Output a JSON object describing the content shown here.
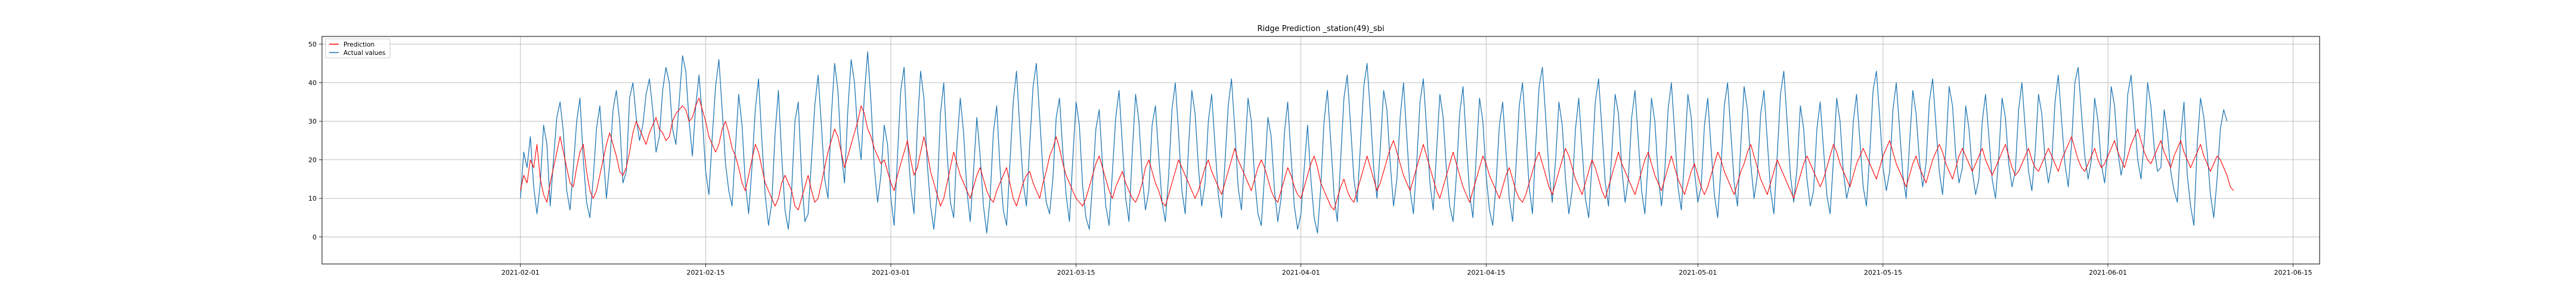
{
  "chart_data": {
    "type": "line",
    "title": "Ridge Prediction _station(49)_sbi",
    "xlabel": "",
    "ylabel": "",
    "x_range": [
      "2021-01-17",
      "2021-06-17"
    ],
    "ylim": [
      -7,
      52
    ],
    "x_ticks": [
      "2021-02-01",
      "2021-02-15",
      "2021-03-01",
      "2021-03-15",
      "2021-04-01",
      "2021-04-15",
      "2021-05-01",
      "2021-05-15",
      "2021-06-01",
      "2021-06-15"
    ],
    "y_ticks": [
      0,
      10,
      20,
      30,
      40,
      50
    ],
    "grid": true,
    "legend_position": "top-left",
    "sampling": "every 6 hours, 2021-02-01 to 2021-06-10",
    "series": [
      {
        "name": "Prediction",
        "color": "#ff0000",
        "values": [
          12,
          16,
          14,
          20,
          18,
          24,
          15,
          11,
          9,
          14,
          18,
          22,
          26,
          22,
          18,
          14,
          13,
          18,
          22,
          24,
          17,
          12,
          10,
          12,
          16,
          20,
          24,
          27,
          24,
          21,
          17,
          16,
          18,
          22,
          27,
          30,
          28,
          26,
          24,
          27,
          29,
          31,
          28,
          27,
          25,
          26,
          30,
          32,
          33,
          34,
          33,
          30,
          31,
          34,
          36,
          33,
          30,
          26,
          24,
          22,
          24,
          28,
          30,
          27,
          23,
          21,
          18,
          14,
          12,
          16,
          20,
          24,
          22,
          18,
          14,
          12,
          10,
          8,
          10,
          14,
          16,
          14,
          12,
          8,
          7,
          10,
          13,
          16,
          12,
          9,
          10,
          14,
          18,
          22,
          25,
          28,
          26,
          22,
          18,
          21,
          24,
          27,
          30,
          34,
          32,
          28,
          26,
          23,
          21,
          19,
          20,
          17,
          14,
          12,
          16,
          19,
          22,
          25,
          20,
          16,
          18,
          22,
          26,
          22,
          17,
          14,
          11,
          8,
          10,
          14,
          18,
          22,
          19,
          16,
          14,
          12,
          10,
          13,
          16,
          18,
          15,
          12,
          10,
          9,
          12,
          14,
          16,
          18,
          14,
          10,
          8,
          11,
          14,
          16,
          17,
          14,
          12,
          10,
          14,
          17,
          21,
          23,
          26,
          23,
          19,
          16,
          14,
          12,
          10,
          9,
          8,
          10,
          13,
          16,
          19,
          21,
          18,
          15,
          12,
          10,
          13,
          15,
          17,
          14,
          12,
          10,
          9,
          11,
          14,
          18,
          20,
          17,
          14,
          12,
          9,
          8,
          11,
          14,
          17,
          20,
          18,
          16,
          14,
          12,
          10,
          12,
          15,
          18,
          20,
          17,
          15,
          13,
          11,
          14,
          17,
          20,
          23,
          20,
          18,
          16,
          14,
          12,
          15,
          18,
          20,
          18,
          15,
          12,
          10,
          9,
          12,
          15,
          18,
          16,
          13,
          11,
          10,
          13,
          16,
          19,
          21,
          18,
          14,
          12,
          10,
          8,
          7,
          10,
          13,
          15,
          12,
          10,
          9,
          12,
          15,
          18,
          21,
          18,
          15,
          12,
          14,
          17,
          20,
          23,
          25,
          22,
          19,
          16,
          14,
          12,
          15,
          18,
          21,
          24,
          21,
          18,
          15,
          12,
          10,
          13,
          16,
          19,
          22,
          19,
          16,
          13,
          11,
          9,
          12,
          15,
          18,
          21,
          19,
          16,
          14,
          12,
          10,
          13,
          16,
          18,
          15,
          12,
          10,
          9,
          11,
          14,
          17,
          20,
          22,
          19,
          16,
          13,
          11,
          14,
          17,
          20,
          23,
          21,
          18,
          15,
          13,
          11,
          14,
          17,
          20,
          18,
          15,
          12,
          10,
          13,
          16,
          19,
          22,
          19,
          17,
          15,
          13,
          11,
          14,
          17,
          20,
          22,
          19,
          16,
          14,
          12,
          15,
          18,
          21,
          18,
          15,
          13,
          11,
          14,
          17,
          19,
          16,
          13,
          11,
          13,
          16,
          19,
          22,
          20,
          17,
          15,
          13,
          11,
          14,
          17,
          19,
          22,
          24,
          21,
          18,
          15,
          13,
          11,
          14,
          17,
          20,
          18,
          16,
          14,
          12,
          10,
          13,
          16,
          19,
          21,
          19,
          17,
          15,
          13,
          15,
          18,
          21,
          24,
          22,
          19,
          17,
          15,
          13,
          16,
          19,
          21,
          23,
          21,
          19,
          17,
          15,
          18,
          21,
          23,
          25,
          22,
          19,
          17,
          15,
          13,
          16,
          19,
          21,
          18,
          16,
          14,
          17,
          20,
          22,
          24,
          22,
          19,
          17,
          15,
          18,
          21,
          23,
          21,
          19,
          17,
          19,
          21,
          23,
          20,
          18,
          16,
          18,
          20,
          22,
          24,
          21,
          18,
          16,
          17,
          19,
          21,
          23,
          20,
          18,
          17,
          19,
          21,
          23,
          21,
          19,
          17,
          20,
          22,
          24,
          26,
          23,
          20,
          18,
          17,
          19,
          21,
          23,
          20,
          18,
          19,
          21,
          23,
          25,
          22,
          20,
          18,
          21,
          24,
          26,
          28,
          25,
          22,
          20,
          19,
          21,
          23,
          25,
          22,
          20,
          18,
          21,
          23,
          25,
          22,
          20,
          18,
          20,
          22,
          24,
          21,
          19,
          17,
          19,
          21,
          20,
          18,
          16,
          13,
          12
        ]
      },
      {
        "name": "Actual values",
        "color": "#1f77b4",
        "values": [
          10,
          22,
          18,
          26,
          13,
          6,
          14,
          29,
          24,
          8,
          20,
          31,
          35,
          27,
          12,
          7,
          18,
          30,
          36,
          20,
          9,
          5,
          15,
          28,
          34,
          22,
          10,
          19,
          33,
          38,
          30,
          14,
          17,
          36,
          40,
          31,
          25,
          29,
          37,
          41,
          33,
          22,
          26,
          38,
          44,
          40,
          28,
          24,
          35,
          47,
          43,
          30,
          21,
          34,
          42,
          31,
          17,
          11,
          26,
          39,
          46,
          33,
          19,
          12,
          8,
          23,
          37,
          29,
          14,
          6,
          18,
          33,
          41,
          25,
          11,
          3,
          9,
          27,
          38,
          21,
          7,
          2,
          12,
          30,
          35,
          16,
          4,
          6,
          20,
          34,
          42,
          29,
          15,
          10,
          31,
          45,
          38,
          22,
          14,
          33,
          46,
          40,
          27,
          20,
          37,
          48,
          35,
          18,
          9,
          16,
          29,
          24,
          10,
          3,
          21,
          38,
          44,
          25,
          13,
          6,
          28,
          43,
          36,
          19,
          8,
          2,
          11,
          32,
          40,
          22,
          9,
          5,
          24,
          36,
          27,
          12,
          4,
          17,
          31,
          21,
          8,
          1,
          10,
          27,
          34,
          18,
          7,
          3,
          19,
          35,
          43,
          28,
          14,
          8,
          24,
          39,
          45,
          31,
          17,
          9,
          6,
          15,
          31,
          36,
          22,
          11,
          4,
          20,
          35,
          29,
          13,
          5,
          2,
          14,
          28,
          33,
          19,
          8,
          3,
          17,
          31,
          38,
          24,
          10,
          4,
          22,
          37,
          30,
          16,
          7,
          12,
          29,
          34,
          21,
          9,
          4,
          16,
          33,
          40,
          27,
          12,
          6,
          23,
          38,
          32,
          18,
          8,
          14,
          30,
          37,
          24,
          11,
          5,
          19,
          34,
          41,
          28,
          13,
          7,
          21,
          36,
          30,
          15,
          6,
          3,
          16,
          31,
          26,
          12,
          4,
          10,
          27,
          35,
          21,
          8,
          2,
          6,
          18,
          29,
          15,
          5,
          1,
          13,
          30,
          38,
          25,
          11,
          4,
          20,
          36,
          42,
          29,
          15,
          9,
          24,
          39,
          45,
          32,
          18,
          10,
          23,
          38,
          33,
          19,
          8,
          15,
          31,
          40,
          26,
          12,
          6,
          19,
          35,
          41,
          28,
          14,
          7,
          22,
          37,
          31,
          17,
          8,
          4,
          16,
          32,
          39,
          25,
          11,
          5,
          21,
          36,
          30,
          16,
          7,
          3,
          14,
          29,
          35,
          22,
          10,
          4,
          18,
          34,
          40,
          27,
          13,
          6,
          24,
          39,
          44,
          31,
          17,
          9,
          20,
          35,
          29,
          15,
          6,
          12,
          28,
          36,
          23,
          10,
          5,
          19,
          35,
          41,
          28,
          14,
          8,
          22,
          37,
          32,
          18,
          9,
          15,
          31,
          38,
          25,
          12,
          6,
          20,
          36,
          30,
          16,
          8,
          17,
          33,
          40,
          27,
          13,
          7,
          21,
          37,
          31,
          17,
          9,
          13,
          29,
          36,
          23,
          11,
          5,
          18,
          34,
          40,
          27,
          14,
          8,
          24,
          39,
          33,
          19,
          10,
          16,
          32,
          38,
          25,
          12,
          6,
          21,
          37,
          43,
          30,
          16,
          9,
          18,
          34,
          28,
          15,
          8,
          12,
          28,
          35,
          23,
          11,
          6,
          20,
          36,
          30,
          17,
          10,
          14,
          30,
          37,
          25,
          13,
          8,
          22,
          38,
          43,
          31,
          18,
          12,
          17,
          33,
          40,
          28,
          16,
          10,
          24,
          38,
          32,
          20,
          13,
          19,
          35,
          41,
          29,
          17,
          11,
          23,
          39,
          34,
          21,
          14,
          18,
          34,
          28,
          17,
          11,
          15,
          30,
          37,
          26,
          15,
          10,
          21,
          36,
          31,
          19,
          13,
          17,
          33,
          40,
          28,
          17,
          12,
          22,
          37,
          32,
          20,
          14,
          19,
          35,
          42,
          30,
          19,
          13,
          24,
          40,
          44,
          32,
          21,
          15,
          20,
          36,
          30,
          19,
          14,
          23,
          39,
          34,
          22,
          16,
          21,
          37,
          42,
          31,
          20,
          15,
          25,
          40,
          34,
          23,
          17,
          18,
          33,
          27,
          17,
          12,
          9,
          26,
          35,
          16,
          8,
          3,
          24,
          36,
          31,
          22,
          11,
          5,
          15,
          28,
          33,
          30
        ]
      }
    ]
  }
}
